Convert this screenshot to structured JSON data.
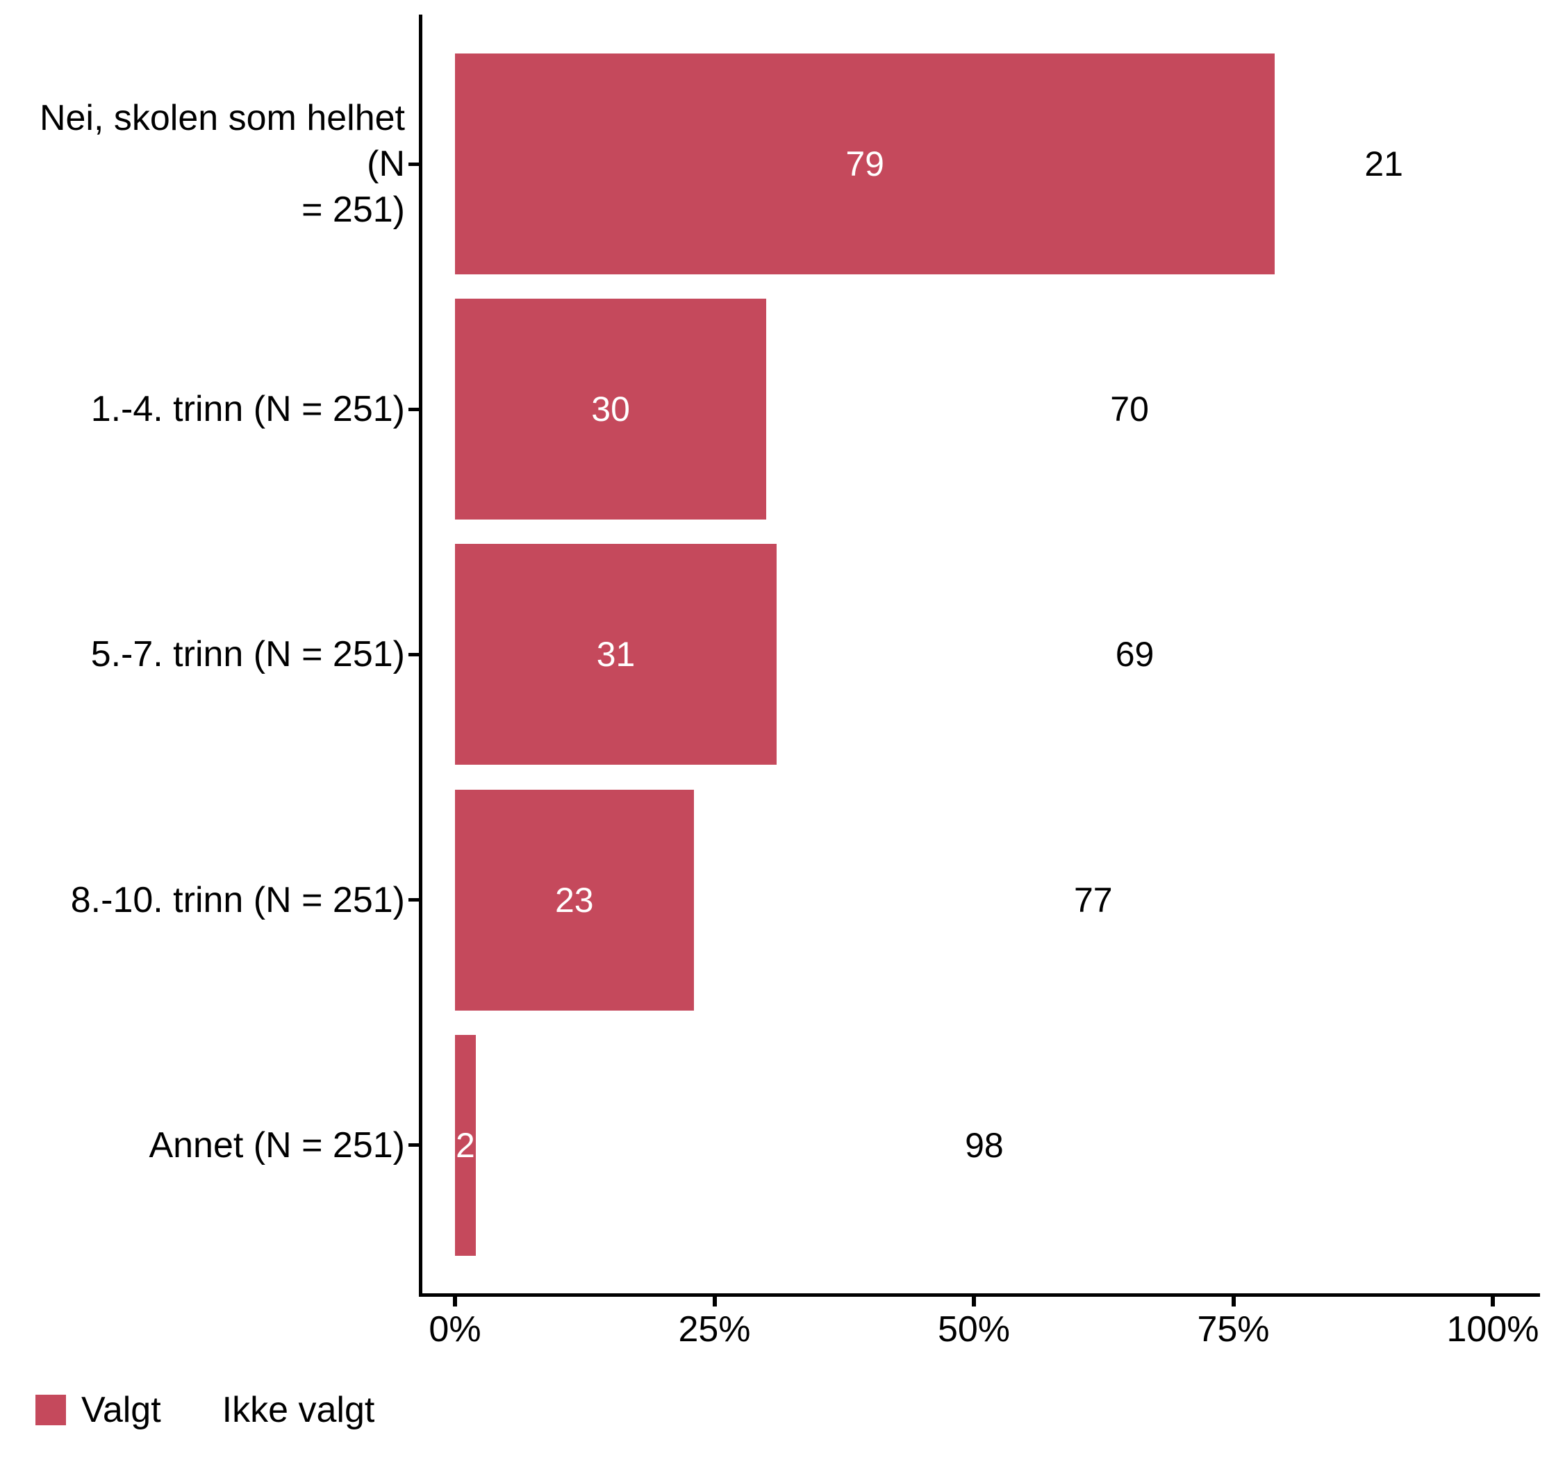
{
  "chart_data": {
    "type": "bar",
    "orientation": "horizontal",
    "percent_stacked": true,
    "title": "",
    "xlabel": "",
    "ylabel": "",
    "categories": [
      "Nei, skolen som helhet (N\n= 251)",
      "1.-4. trinn (N = 251)",
      "5.-7. trinn (N = 251)",
      "8.-10. trinn (N = 251)",
      "Annet (N = 251)"
    ],
    "series": [
      {
        "name": "Valgt",
        "color": "#C5495C",
        "label_color": "#FFFFFF",
        "values": [
          79,
          30,
          31,
          23,
          2
        ]
      },
      {
        "name": "Ikke valgt",
        "color": "#FFFFFF",
        "label_color": "#000000",
        "values": [
          21,
          70,
          69,
          77,
          98
        ]
      }
    ],
    "x_ticks": [
      "0%",
      "25%",
      "50%",
      "75%",
      "100%"
    ],
    "x_tick_values": [
      0,
      25,
      50,
      75,
      100
    ],
    "xlim": [
      0,
      100
    ],
    "grid": "off",
    "bar_label_position": "segment-center",
    "axis_color": "#000000",
    "text_color": "#000000",
    "legend": {
      "position": "bottom-left",
      "entries": [
        {
          "label": "Valgt",
          "swatch": "#C5495C"
        },
        {
          "label": "Ikke valgt",
          "swatch": "#FFFFFF"
        }
      ]
    }
  }
}
